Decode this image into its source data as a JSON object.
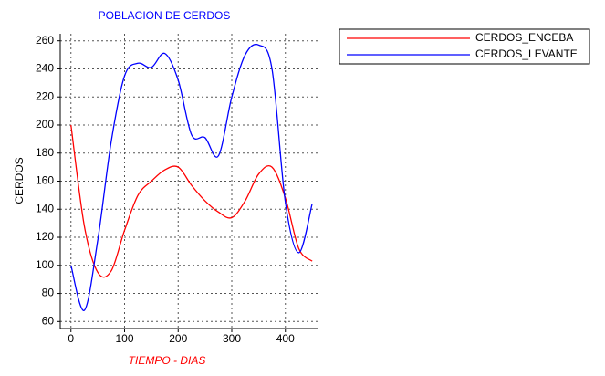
{
  "chart_data": {
    "type": "line",
    "title": "POBLACION DE CERDOS",
    "x_label": "TIEMPO - DIAS",
    "y_label": "CERDOS",
    "x": [
      0,
      25,
      50,
      75,
      100,
      125,
      150,
      175,
      200,
      225,
      250,
      275,
      300,
      325,
      350,
      375,
      400,
      425,
      450
    ],
    "series": [
      {
        "name": "CERDOS_ENCEBA",
        "color": "#ff0000",
        "values": [
          200,
          128,
          95,
          96,
          125,
          150,
          160,
          168,
          170,
          157,
          146,
          138,
          134,
          146,
          165,
          170,
          148,
          112,
          103
        ]
      },
      {
        "name": "CERDOS_LEVANTE",
        "color": "#0000ff",
        "values": [
          100,
          68,
          118,
          188,
          235,
          244,
          241,
          251,
          232,
          193,
          191,
          178,
          220,
          250,
          257,
          240,
          145,
          109,
          144
        ]
      }
    ],
    "xlim": [
      -20,
      460
    ],
    "ylim": [
      55,
      265
    ],
    "xticks": [
      0,
      100,
      200,
      300,
      400
    ],
    "yticks": [
      60,
      80,
      100,
      120,
      140,
      160,
      180,
      200,
      220,
      240,
      260
    ],
    "grid": true,
    "legend": "top-right"
  }
}
